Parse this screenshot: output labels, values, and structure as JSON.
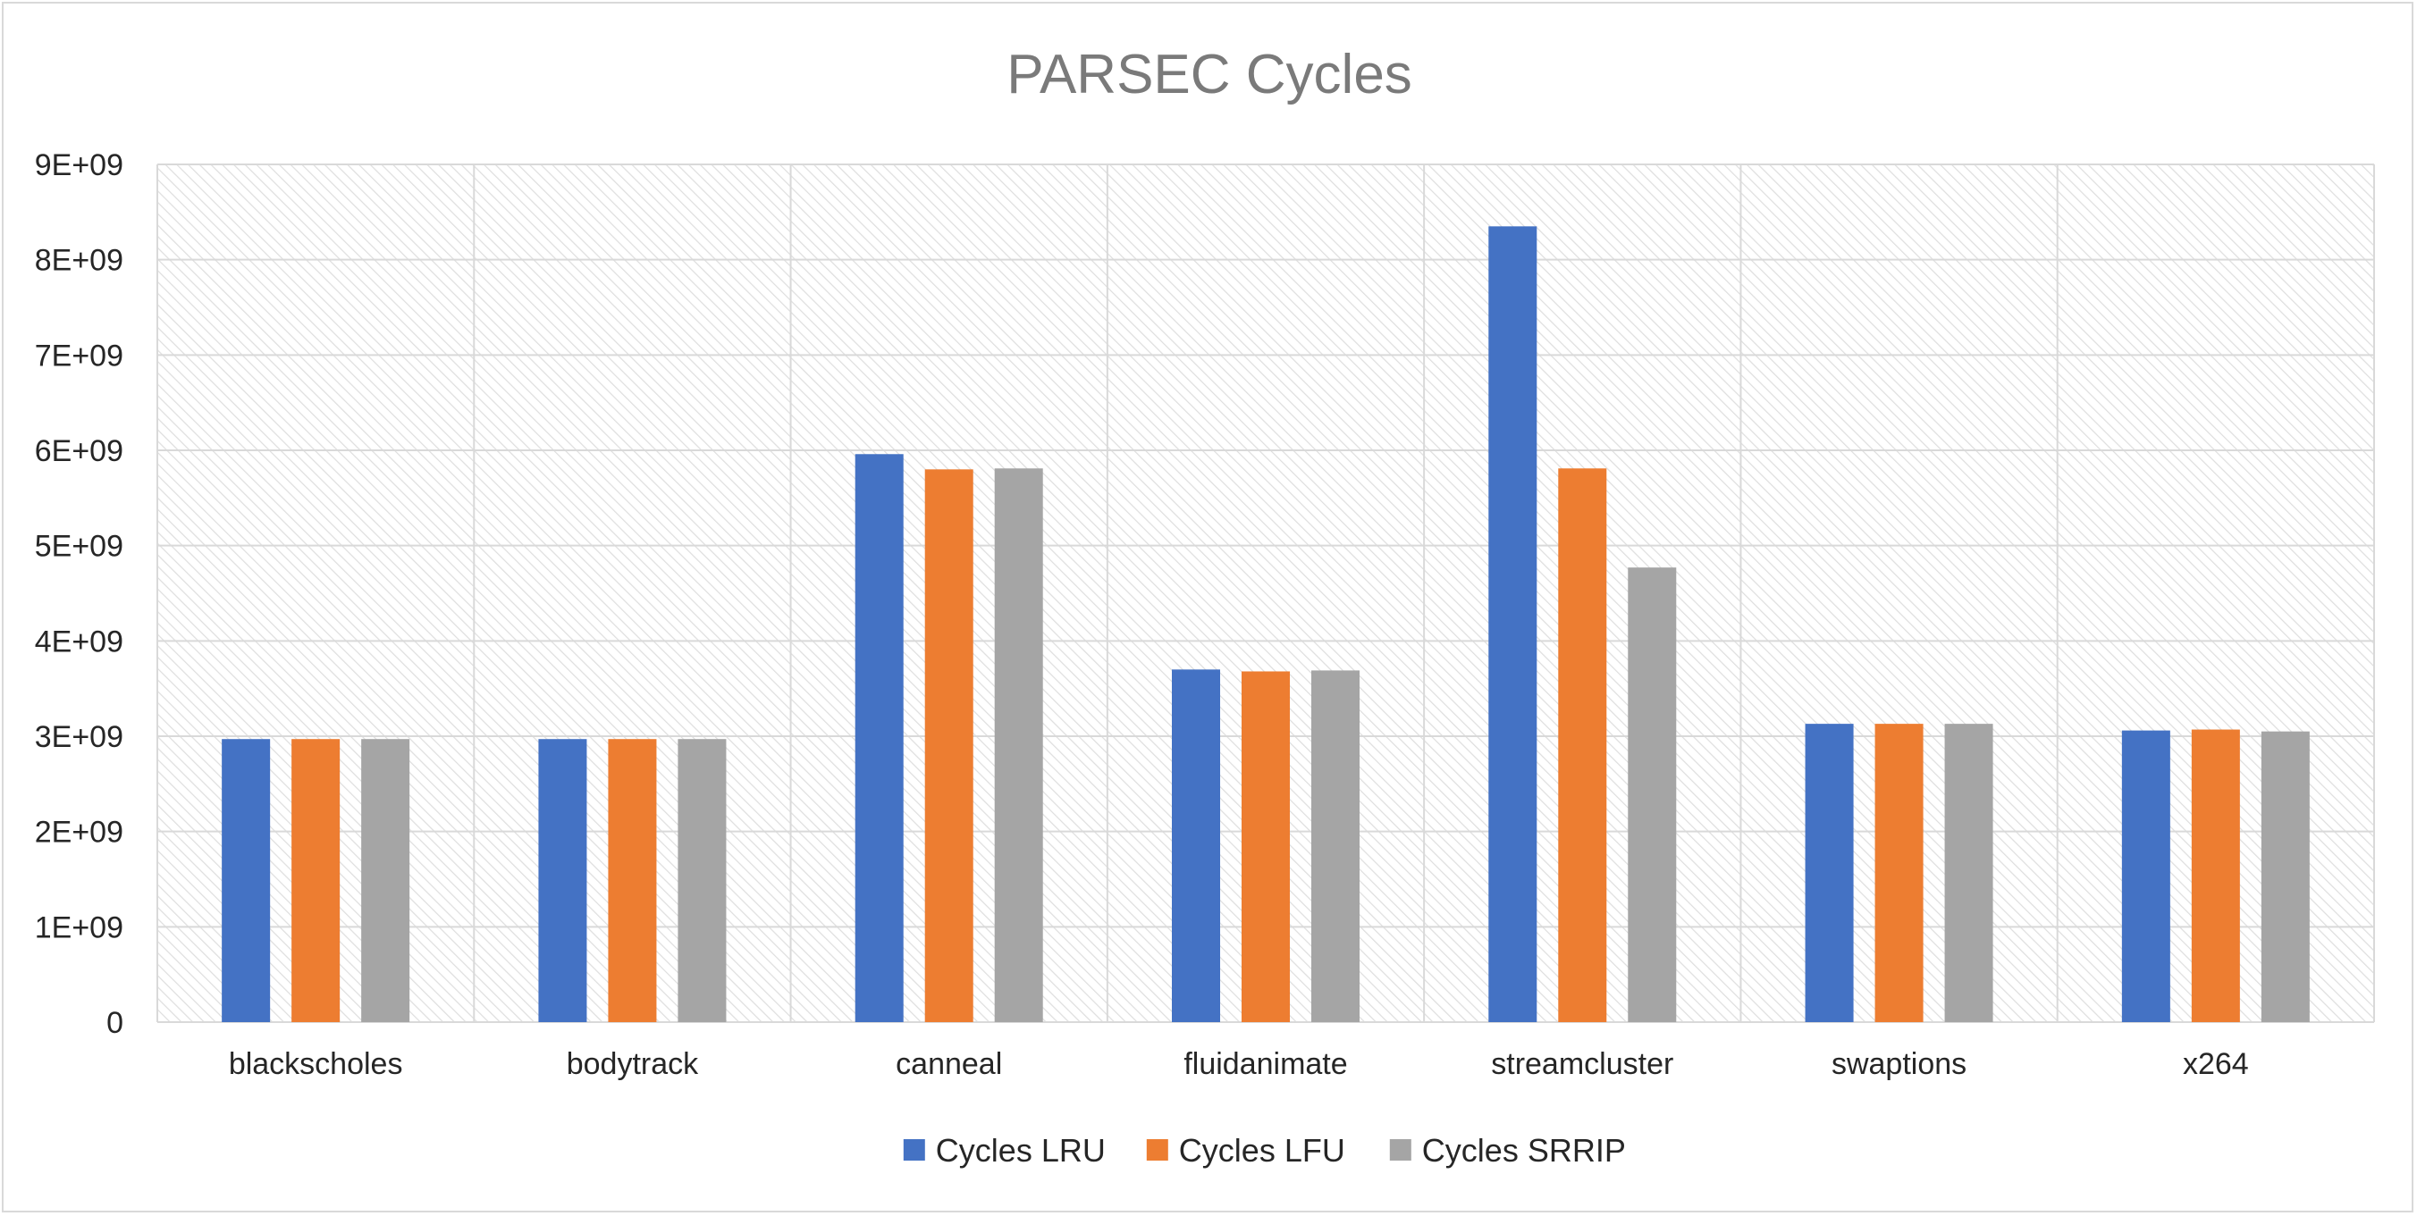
{
  "chart_data": {
    "type": "bar",
    "title": "PARSEC Cycles",
    "xlabel": "",
    "ylabel": "",
    "categories": [
      "blackscholes",
      "bodytrack",
      "canneal",
      "fluidanimate",
      "streamcluster",
      "swaptions",
      "x264"
    ],
    "series": [
      {
        "name": "Cycles LRU",
        "color": "#4472c4",
        "values": [
          2970000000,
          2970000000,
          5960000000,
          3700000000,
          8350000000,
          3130000000,
          3060000000
        ]
      },
      {
        "name": "Cycles LFU",
        "color": "#ed7d31",
        "values": [
          2970000000,
          2970000000,
          5800000000,
          3680000000,
          5810000000,
          3130000000,
          3070000000
        ]
      },
      {
        "name": "Cycles SRRIP",
        "color": "#a5a5a5",
        "values": [
          2970000000,
          2970000000,
          5810000000,
          3690000000,
          4770000000,
          3130000000,
          3050000000
        ]
      }
    ],
    "ylim": [
      0,
      9000000000
    ],
    "yticks": [
      0,
      1000000000,
      2000000000,
      3000000000,
      4000000000,
      5000000000,
      6000000000,
      7000000000,
      8000000000,
      9000000000
    ],
    "ytick_labels": [
      "0",
      "1E+09",
      "2E+09",
      "3E+09",
      "4E+09",
      "5E+09",
      "6E+09",
      "7E+09",
      "8E+09",
      "9E+09"
    ],
    "grid": true,
    "legend": "bottom"
  }
}
